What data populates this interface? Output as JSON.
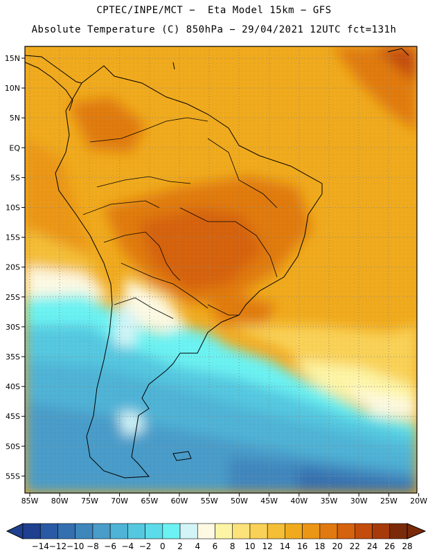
{
  "header": {
    "line1": "CPTEC/INPE/MCT −  Eta Model 15km − GFS",
    "line2": "Absolute Temperature (C) 850hPa − 29/04/2021 12UTC fct=131h"
  },
  "map": {
    "lat_labels": [
      "15N",
      "10N",
      "5N",
      "EQ",
      "5S",
      "10S",
      "15S",
      "20S",
      "25S",
      "30S",
      "35S",
      "40S",
      "45S",
      "50S",
      "55S"
    ],
    "lon_labels": [
      "85W",
      "80W",
      "75W",
      "70W",
      "65W",
      "60W",
      "55W",
      "50W",
      "45W",
      "40W",
      "35W",
      "30W",
      "25W",
      "20W"
    ]
  },
  "colorbar": {
    "labels": [
      "-14",
      "-12",
      "-10",
      "-8",
      "-6",
      "-4",
      "-2",
      "0",
      "2",
      "4",
      "6",
      "8",
      "10",
      "12",
      "14",
      "16",
      "18",
      "20",
      "22",
      "24",
      "26",
      "28"
    ],
    "colors": [
      "#1f3f8f",
      "#2a5aa3",
      "#3470b0",
      "#3f86bd",
      "#4a9cc9",
      "#4fb3d6",
      "#55c8e0",
      "#5cdcea",
      "#6cf2f2",
      "#d2f4f7",
      "#fdf9e3",
      "#fdf5a6",
      "#fbe27a",
      "#f9d157",
      "#f4bf37",
      "#f0aa1d",
      "#eb9614",
      "#e07a10",
      "#d5620d",
      "#c34b0b",
      "#a63a0a",
      "#7a2a08"
    ]
  }
}
